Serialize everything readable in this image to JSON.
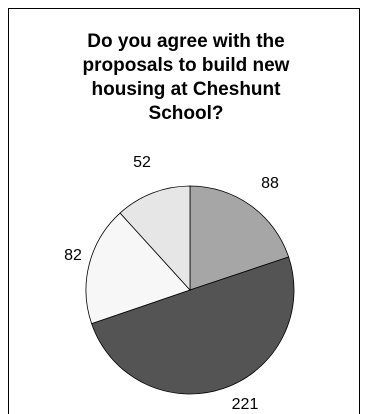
{
  "chart_data": {
    "type": "pie",
    "title_lines": [
      "Do you agree with the",
      "proposals to build new",
      "housing at  Cheshunt",
      "School?"
    ],
    "slices": [
      {
        "value": 88,
        "label": "88",
        "color": "#a6a6a6"
      },
      {
        "value": 221,
        "label": "221",
        "color": "#545454"
      },
      {
        "value": 82,
        "label": "82",
        "color": "#f7f7f7"
      },
      {
        "value": 52,
        "label": "52",
        "color": "#e6e6e6"
      }
    ]
  }
}
